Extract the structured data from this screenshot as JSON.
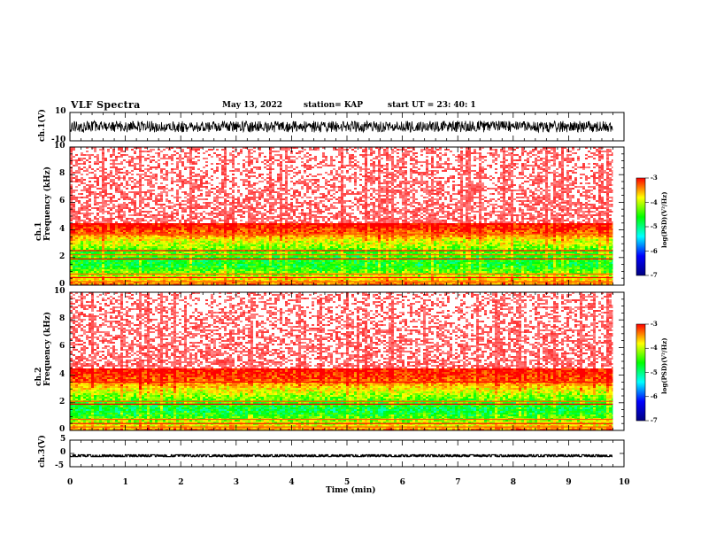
{
  "header": {
    "title": "VLF Spectra",
    "date": "May 13, 2022",
    "station": "station= KAP",
    "start": "start  UT =    23: 40: 1"
  },
  "chart_data": [
    {
      "type": "line",
      "name": "ch1-waveform",
      "ylabel": "ch.1(V)",
      "ylim": [
        -10,
        10
      ],
      "ytick_labels": [
        "10",
        "-10"
      ],
      "xlim": [
        0,
        10
      ],
      "signal_range_v": [
        -4,
        4
      ],
      "signal_end_min": 9.8
    },
    {
      "type": "heatmap",
      "name": "ch1-spectrogram",
      "ylabel": "ch.1\nFrequency (kHz)",
      "ylim": [
        0,
        10
      ],
      "ytick_labels": [
        "0",
        "2",
        "4",
        "6",
        "8",
        "10"
      ],
      "xlim": [
        0,
        9.8
      ],
      "profile_khz": [
        [
          0.0,
          -4.2
        ],
        [
          0.4,
          -4.6
        ],
        [
          0.8,
          -5.0
        ],
        [
          1.5,
          -5.5
        ],
        [
          2.5,
          -5.2
        ],
        [
          3.3,
          -4.8
        ],
        [
          3.8,
          -4.2
        ],
        [
          4.6,
          -3.8
        ],
        [
          5.2,
          -3.9
        ],
        [
          6.5,
          -3.8
        ],
        [
          10.0,
          -3.75
        ]
      ],
      "lines_khz": [
        0.25,
        0.55,
        0.8,
        1.9,
        2.2,
        2.5,
        3.7
      ],
      "colorbar": {
        "label": "log(PSD)(V²/Hz)",
        "range": [
          -7,
          -3
        ],
        "tick_labels": [
          "-3",
          "-4",
          "-5",
          "-6",
          "-7"
        ],
        "colors": [
          "#ff0000",
          "#ffff00",
          "#00ff00",
          "#00ffff",
          "#0000ff",
          "#000080"
        ]
      }
    },
    {
      "type": "heatmap",
      "name": "ch2-spectrogram",
      "ylabel": "ch.2\nFrequency (kHz)",
      "ylim": [
        0,
        10
      ],
      "ytick_labels": [
        "0",
        "2",
        "4",
        "6",
        "8",
        "10"
      ],
      "xlim": [
        0,
        9.8
      ],
      "profile_khz": [
        [
          0.0,
          -4.2
        ],
        [
          0.4,
          -4.7
        ],
        [
          0.8,
          -5.1
        ],
        [
          1.5,
          -5.6
        ],
        [
          2.5,
          -5.1
        ],
        [
          3.2,
          -4.6
        ],
        [
          3.8,
          -4.1
        ],
        [
          4.6,
          -3.85
        ],
        [
          5.2,
          -3.9
        ],
        [
          6.5,
          -3.8
        ],
        [
          10.0,
          -3.75
        ]
      ],
      "lines_khz": [
        0.25,
        0.5,
        0.8,
        1.9,
        2.1,
        3.5
      ],
      "colorbar": {
        "label": "log(PSD)(V²/Hz)",
        "range": [
          -7,
          -3
        ],
        "tick_labels": [
          "-3",
          "-4",
          "-5",
          "-6",
          "-7"
        ],
        "colors": [
          "#ff0000",
          "#ffff00",
          "#00ff00",
          "#00ffff",
          "#0000ff",
          "#000080"
        ]
      }
    },
    {
      "type": "line",
      "name": "ch3-waveform",
      "ylabel": "ch.3(V)",
      "ylim": [
        -5,
        5
      ],
      "ytick_labels": [
        "5",
        "0",
        "-5"
      ],
      "xlim": [
        0,
        10
      ],
      "signal_range_v": [
        -1.2,
        -0.5
      ],
      "signal_end_min": 9.8
    }
  ],
  "xaxis": {
    "label": "Time (min)",
    "range": [
      0,
      10
    ],
    "ticks": [
      "0",
      "1",
      "2",
      "3",
      "4",
      "5",
      "6",
      "7",
      "8",
      "9",
      "10"
    ]
  }
}
